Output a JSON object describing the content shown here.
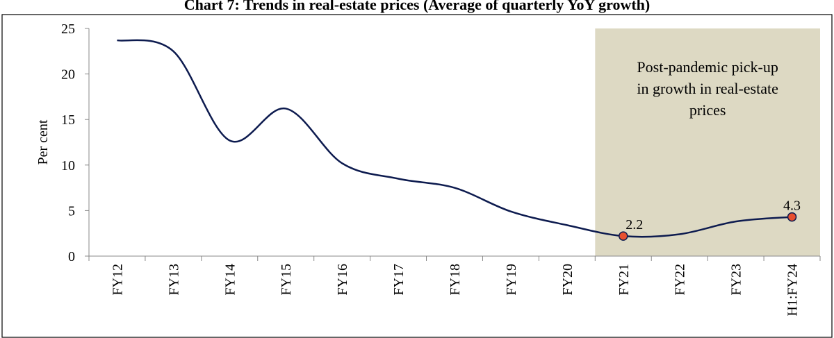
{
  "chart_data": {
    "type": "line",
    "title": "Chart 7: Trends in real-estate prices (Average of quarterly YoY growth)",
    "ylabel": "Per cent",
    "categories": [
      "FY12",
      "FY13",
      "FY14",
      "FY15",
      "FY16",
      "FY17",
      "FY18",
      "FY19",
      "FY20",
      "FY21",
      "FY22",
      "FY23",
      "H1:FY24"
    ],
    "values": [
      23.7,
      22.5,
      12.7,
      16.2,
      10.2,
      8.5,
      7.5,
      4.9,
      3.4,
      2.2,
      2.4,
      3.8,
      4.3
    ],
    "value_labels": [
      null,
      null,
      null,
      null,
      null,
      null,
      null,
      null,
      null,
      "2.2",
      null,
      null,
      "4.3"
    ],
    "color": "#0d1b4f",
    "marker_color": "#e8502f",
    "ylim": [
      0,
      25
    ],
    "yticks": [
      0,
      5,
      10,
      15,
      20,
      25
    ],
    "shaded_from": "FY21",
    "shade_color": "#ddd9c3",
    "annotation": [
      "Post-pandemic pick-up",
      "in growth in real-estate",
      "prices"
    ]
  }
}
